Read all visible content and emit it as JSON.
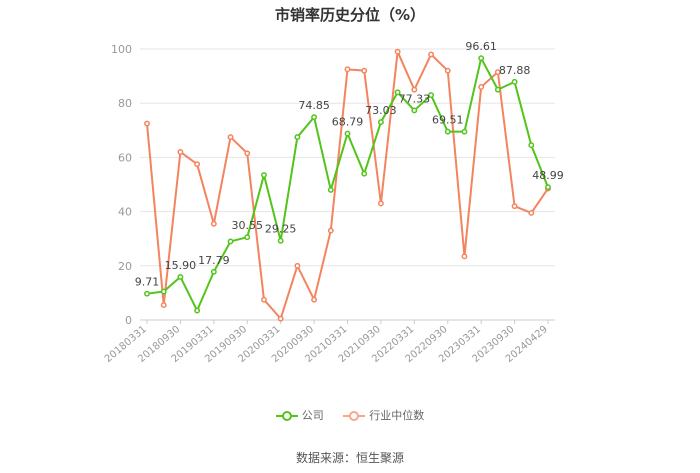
{
  "chart_data": {
    "type": "line",
    "title": "市销率历史分位（%）",
    "ylim": [
      0,
      100
    ],
    "yticks": [
      0,
      20,
      40,
      60,
      80,
      100
    ],
    "x_tick_labels": [
      "20180331",
      "20180930",
      "20190331",
      "20190930",
      "20200331",
      "20200930",
      "20210331",
      "20210930",
      "20220331",
      "20220930",
      "20230331",
      "20230930",
      "20240429"
    ],
    "x_count": 25,
    "grid": "horizontal",
    "legend_position": "bottom",
    "series": [
      {
        "name": "公司",
        "color": "#52c41a",
        "values": [
          9.71,
          10.5,
          15.9,
          3.5,
          17.79,
          29.0,
          30.55,
          53.5,
          29.25,
          67.5,
          74.85,
          48.0,
          68.79,
          54.0,
          73.03,
          84.0,
          77.33,
          83.0,
          69.51,
          69.5,
          96.61,
          85.0,
          87.88,
          64.5,
          48.99
        ],
        "labels": {
          "0": "9.71",
          "2": "15.90",
          "4": "17.79",
          "6": "30.55",
          "8": "29.25",
          "10": "74.85",
          "12": "68.79",
          "14": "73.03",
          "16": "77.33",
          "18": "69.51",
          "20": "96.61",
          "22": "87.88",
          "24": "48.99"
        }
      },
      {
        "name": "行业中位数",
        "color": "#f4845f",
        "values": [
          72.5,
          5.5,
          62.0,
          57.5,
          35.5,
          67.5,
          61.5,
          7.5,
          0.5,
          20.0,
          7.5,
          33.0,
          92.5,
          92.0,
          43.0,
          99.0,
          85.0,
          98.0,
          92.0,
          23.5,
          86.0,
          91.5,
          42.0,
          39.5,
          48.5
        ]
      }
    ]
  },
  "source_text": "数据来源：恒生聚源"
}
